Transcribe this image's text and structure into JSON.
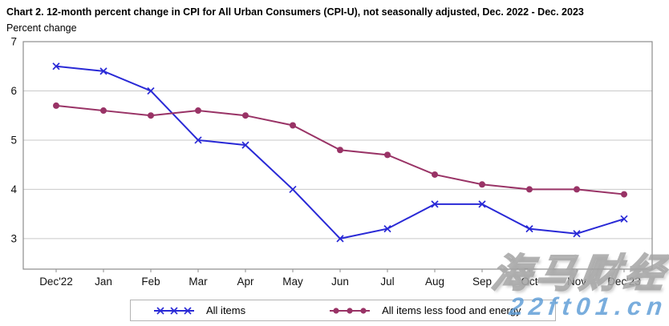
{
  "title": "Chart 2. 12-month percent change in CPI for All Urban Consumers (CPI-U), not seasonally adjusted, Dec. 2022 - Dec. 2023",
  "subtitle": "Percent change",
  "chart_data": {
    "type": "line",
    "title": "Chart 2. 12-month percent change in CPI for All Urban Consumers (CPI-U), not seasonally adjusted, Dec. 2022 - Dec. 2023",
    "ylabel": "Percent change",
    "xlabel": "",
    "categories": [
      "Dec'22",
      "Jan",
      "Feb",
      "Mar",
      "Apr",
      "May",
      "Jun",
      "Jul",
      "Aug",
      "Sep",
      "Oct",
      "Nov",
      "Dec'23"
    ],
    "series": [
      {
        "name": "All items",
        "marker": "x",
        "color": "#2929d6",
        "values": [
          6.5,
          6.4,
          6.0,
          5.0,
          4.9,
          4.0,
          3.0,
          3.2,
          3.7,
          3.7,
          3.2,
          3.1,
          3.4
        ]
      },
      {
        "name": "All items less food and energy",
        "marker": "circle",
        "color": "#993366",
        "values": [
          5.7,
          5.6,
          5.5,
          5.6,
          5.5,
          5.3,
          4.8,
          4.7,
          4.3,
          4.1,
          4.0,
          4.0,
          3.9
        ]
      }
    ],
    "yticks": [
      3,
      4,
      5,
      6,
      7
    ],
    "ylim": [
      2.38,
      7
    ],
    "grid": true,
    "legend_position": "bottom"
  },
  "colors": {
    "all_items": "#2929d6",
    "core_items": "#993366",
    "gridline": "#c9c9c9",
    "plot_border": "#8c8c8c",
    "tick_text": "#111111",
    "watermark_blue": "#5b9bd5"
  },
  "watermark": {
    "line1": "海马财经",
    "line2": "22ft01.cn"
  }
}
